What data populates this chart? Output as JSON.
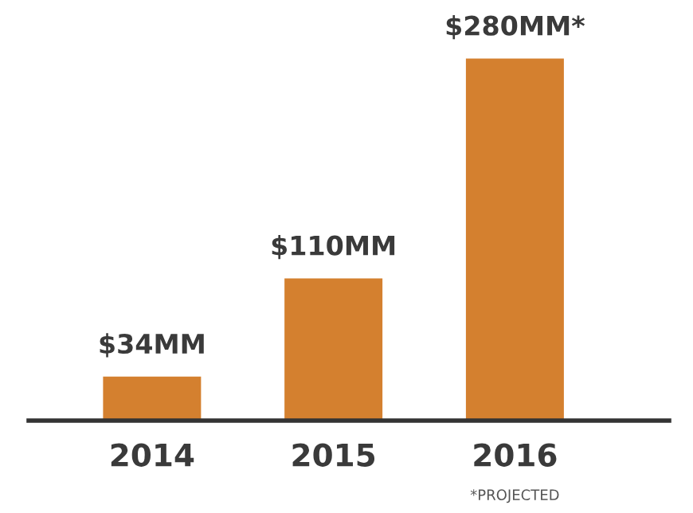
{
  "chart_data": {
    "type": "bar",
    "categories": [
      "2014",
      "2015",
      "2016"
    ],
    "values": [
      34,
      110,
      280
    ],
    "value_labels": [
      "$34MM",
      "$110MM",
      "$280MM*"
    ],
    "color": "#d4802f",
    "grid": false,
    "tick_labels": "x",
    "annotations": [
      "*PROJECTED"
    ]
  }
}
